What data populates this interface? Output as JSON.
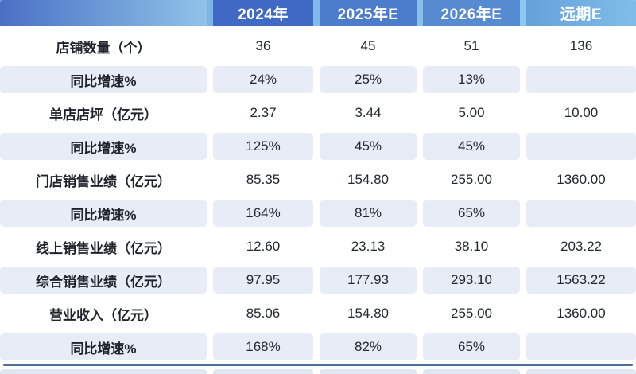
{
  "chart_data": {
    "type": "table",
    "columns": [
      "",
      "2024年",
      "2025年E",
      "2026年E",
      "远期E"
    ],
    "rows": [
      {
        "label": "店铺数量（个）",
        "values": [
          "36",
          "45",
          "51",
          "136"
        ]
      },
      {
        "label": "同比增速%",
        "values": [
          "24%",
          "25%",
          "13%",
          ""
        ]
      },
      {
        "label": "单店店坪（亿元）",
        "values": [
          "2.37",
          "3.44",
          "5.00",
          "10.00"
        ]
      },
      {
        "label": "同比增速%",
        "values": [
          "125%",
          "45%",
          "45%",
          ""
        ]
      },
      {
        "label": "门店销售业绩（亿元）",
        "values": [
          "85.35",
          "154.80",
          "255.00",
          "1360.00"
        ]
      },
      {
        "label": "同比增速%",
        "values": [
          "164%",
          "81%",
          "65%",
          ""
        ]
      },
      {
        "label": "线上销售业绩（亿元）",
        "values": [
          "12.60",
          "23.13",
          "38.10",
          "203.22"
        ]
      },
      {
        "label": "综合销售业绩（亿元）",
        "values": [
          "97.95",
          "177.93",
          "293.10",
          "1563.22"
        ]
      },
      {
        "label": "营业收入（亿元）",
        "values": [
          "85.06",
          "154.80",
          "255.00",
          "1360.00"
        ]
      },
      {
        "label": "同比增速%",
        "values": [
          "168%",
          "82%",
          "65%",
          ""
        ]
      }
    ],
    "striped_row_indices": [
      1,
      3,
      5,
      7,
      9
    ],
    "layout": {
      "grid": "off",
      "header_position": "top",
      "value_alignment": "center"
    }
  },
  "colors": {
    "header_cells": [
      "linear-gradient(90deg, #4A70C5 0%, #8FC3E9 100%)",
      "#3F69C4",
      "#4C7DCC",
      "#578BD1",
      "linear-gradient(90deg, #66A0DA 0%, #7FBEE9 100%)"
    ],
    "header_text": "#FFFFFF",
    "stripe_fill": "#E7ECF6",
    "bottom_border": "#4E6F9E",
    "body_text": "#23272E"
  }
}
